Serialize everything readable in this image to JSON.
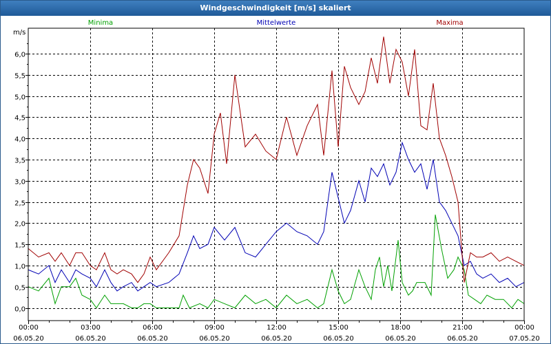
{
  "window": {
    "title": "Windgeschwindigkeit [m/s] skaliert"
  },
  "colors": {
    "min": "#00a000",
    "mean": "#0000b4",
    "max": "#a00000",
    "grid": "#000000",
    "titlebar": "#2a6aaa"
  },
  "chart_data": {
    "type": "line",
    "title": "Windgeschwindigkeit [m/s] skaliert",
    "ylabel": "m/s",
    "xlabel": "",
    "ylim": [
      -0.3,
      6.6
    ],
    "xlim": [
      0,
      24
    ],
    "grid": true,
    "legend_placement": "top",
    "y_ticks": [
      {
        "value": 0.0,
        "label": "0,0"
      },
      {
        "value": 0.5,
        "label": "0,5"
      },
      {
        "value": 1.0,
        "label": "1,0"
      },
      {
        "value": 1.5,
        "label": "1,5"
      },
      {
        "value": 2.0,
        "label": "2,0"
      },
      {
        "value": 2.5,
        "label": "2,5"
      },
      {
        "value": 3.0,
        "label": "3,0"
      },
      {
        "value": 3.5,
        "label": "3,5"
      },
      {
        "value": 4.0,
        "label": "4,0"
      },
      {
        "value": 4.5,
        "label": "4,5"
      },
      {
        "value": 5.0,
        "label": "5,0"
      },
      {
        "value": 5.5,
        "label": "5,5"
      },
      {
        "value": 6.0,
        "label": "6,0"
      }
    ],
    "x_ticks": [
      {
        "hour": 0,
        "time": "00:00",
        "date": "06.05.20"
      },
      {
        "hour": 3,
        "time": "03:00",
        "date": "06.05.20"
      },
      {
        "hour": 6,
        "time": "06:00",
        "date": "06.05.20"
      },
      {
        "hour": 9,
        "time": "09:00",
        "date": "06.05.20"
      },
      {
        "hour": 12,
        "time": "12:00",
        "date": "06.05.20"
      },
      {
        "hour": 15,
        "time": "15:00",
        "date": "06.05.20"
      },
      {
        "hour": 18,
        "time": "18:00",
        "date": "06.05.20"
      },
      {
        "hour": 21,
        "time": "21:00",
        "date": "06.05.20"
      },
      {
        "hour": 24,
        "time": "00:00",
        "date": "07.05.20"
      }
    ],
    "series": [
      {
        "key": "min",
        "name": "Minima",
        "color": "#00a000",
        "points": [
          [
            0.0,
            0.5
          ],
          [
            0.5,
            0.4
          ],
          [
            1.0,
            0.7
          ],
          [
            1.3,
            0.1
          ],
          [
            1.6,
            0.5
          ],
          [
            2.0,
            0.5
          ],
          [
            2.3,
            0.7
          ],
          [
            2.6,
            0.3
          ],
          [
            3.0,
            0.2
          ],
          [
            3.3,
            0.0
          ],
          [
            3.7,
            0.3
          ],
          [
            4.0,
            0.1
          ],
          [
            4.3,
            0.1
          ],
          [
            4.6,
            0.1
          ],
          [
            5.0,
            0.0
          ],
          [
            5.3,
            0.0
          ],
          [
            5.6,
            0.1
          ],
          [
            5.9,
            0.1
          ],
          [
            6.2,
            0.0
          ],
          [
            6.8,
            0.0
          ],
          [
            7.3,
            0.0
          ],
          [
            7.5,
            0.3
          ],
          [
            7.8,
            0.0
          ],
          [
            8.3,
            0.1
          ],
          [
            8.7,
            0.0
          ],
          [
            9.0,
            0.2
          ],
          [
            9.5,
            0.1
          ],
          [
            10.0,
            0.0
          ],
          [
            10.5,
            0.3
          ],
          [
            11.0,
            0.1
          ],
          [
            11.5,
            0.2
          ],
          [
            12.0,
            0.0
          ],
          [
            12.5,
            0.3
          ],
          [
            13.0,
            0.1
          ],
          [
            13.5,
            0.2
          ],
          [
            14.0,
            0.0
          ],
          [
            14.3,
            0.1
          ],
          [
            14.7,
            0.9
          ],
          [
            15.0,
            0.4
          ],
          [
            15.3,
            0.1
          ],
          [
            15.6,
            0.2
          ],
          [
            16.0,
            0.9
          ],
          [
            16.3,
            0.5
          ],
          [
            16.6,
            0.2
          ],
          [
            16.8,
            0.9
          ],
          [
            17.0,
            1.2
          ],
          [
            17.2,
            0.5
          ],
          [
            17.4,
            1.0
          ],
          [
            17.6,
            0.4
          ],
          [
            17.9,
            1.6
          ],
          [
            18.1,
            0.6
          ],
          [
            18.4,
            0.3
          ],
          [
            18.6,
            0.4
          ],
          [
            18.8,
            0.6
          ],
          [
            19.2,
            0.6
          ],
          [
            19.5,
            0.3
          ],
          [
            19.7,
            2.2
          ],
          [
            20.0,
            1.4
          ],
          [
            20.3,
            0.7
          ],
          [
            20.6,
            0.9
          ],
          [
            20.8,
            1.2
          ],
          [
            21.1,
            0.9
          ],
          [
            21.3,
            0.3
          ],
          [
            21.6,
            0.2
          ],
          [
            21.9,
            0.1
          ],
          [
            22.2,
            0.3
          ],
          [
            22.6,
            0.2
          ],
          [
            23.0,
            0.2
          ],
          [
            23.4,
            0.0
          ],
          [
            23.7,
            0.2
          ],
          [
            24.0,
            0.1
          ]
        ]
      },
      {
        "key": "mean",
        "name": "Mittelwerte",
        "color": "#0000b4",
        "points": [
          [
            0.0,
            0.9
          ],
          [
            0.5,
            0.8
          ],
          [
            1.0,
            1.0
          ],
          [
            1.3,
            0.6
          ],
          [
            1.6,
            0.9
          ],
          [
            2.0,
            0.6
          ],
          [
            2.3,
            0.9
          ],
          [
            2.6,
            0.8
          ],
          [
            3.0,
            0.7
          ],
          [
            3.3,
            0.5
          ],
          [
            3.7,
            0.9
          ],
          [
            4.0,
            0.6
          ],
          [
            4.3,
            0.4
          ],
          [
            4.6,
            0.5
          ],
          [
            5.0,
            0.6
          ],
          [
            5.3,
            0.4
          ],
          [
            5.6,
            0.5
          ],
          [
            5.9,
            0.6
          ],
          [
            6.2,
            0.5
          ],
          [
            6.8,
            0.6
          ],
          [
            7.3,
            0.8
          ],
          [
            7.7,
            1.3
          ],
          [
            8.0,
            1.7
          ],
          [
            8.3,
            1.4
          ],
          [
            8.7,
            1.5
          ],
          [
            9.0,
            1.9
          ],
          [
            9.5,
            1.6
          ],
          [
            10.0,
            1.9
          ],
          [
            10.5,
            1.3
          ],
          [
            11.0,
            1.2
          ],
          [
            11.5,
            1.5
          ],
          [
            12.0,
            1.8
          ],
          [
            12.5,
            2.0
          ],
          [
            13.0,
            1.8
          ],
          [
            13.5,
            1.7
          ],
          [
            14.0,
            1.5
          ],
          [
            14.3,
            1.8
          ],
          [
            14.7,
            3.2
          ],
          [
            15.0,
            2.6
          ],
          [
            15.3,
            2.0
          ],
          [
            15.6,
            2.3
          ],
          [
            16.0,
            3.0
          ],
          [
            16.3,
            2.5
          ],
          [
            16.6,
            3.3
          ],
          [
            16.9,
            3.1
          ],
          [
            17.2,
            3.4
          ],
          [
            17.5,
            2.9
          ],
          [
            17.8,
            3.2
          ],
          [
            18.1,
            3.9
          ],
          [
            18.4,
            3.5
          ],
          [
            18.7,
            3.2
          ],
          [
            19.0,
            3.4
          ],
          [
            19.3,
            2.8
          ],
          [
            19.6,
            3.5
          ],
          [
            19.9,
            2.5
          ],
          [
            20.2,
            2.3
          ],
          [
            20.5,
            2.0
          ],
          [
            20.8,
            1.7
          ],
          [
            21.1,
            1.0
          ],
          [
            21.4,
            1.1
          ],
          [
            21.7,
            0.8
          ],
          [
            22.0,
            0.7
          ],
          [
            22.4,
            0.8
          ],
          [
            22.8,
            0.6
          ],
          [
            23.2,
            0.7
          ],
          [
            23.6,
            0.5
          ],
          [
            24.0,
            0.6
          ]
        ]
      },
      {
        "key": "max",
        "name": "Maxima",
        "color": "#a00000",
        "points": [
          [
            0.0,
            1.4
          ],
          [
            0.5,
            1.2
          ],
          [
            1.0,
            1.3
          ],
          [
            1.3,
            1.1
          ],
          [
            1.6,
            1.3
          ],
          [
            2.0,
            1.0
          ],
          [
            2.3,
            1.3
          ],
          [
            2.6,
            1.3
          ],
          [
            3.0,
            1.0
          ],
          [
            3.3,
            0.9
          ],
          [
            3.7,
            1.3
          ],
          [
            4.0,
            0.9
          ],
          [
            4.3,
            0.8
          ],
          [
            4.6,
            0.9
          ],
          [
            5.0,
            0.8
          ],
          [
            5.3,
            0.6
          ],
          [
            5.6,
            0.8
          ],
          [
            5.9,
            1.2
          ],
          [
            6.2,
            0.9
          ],
          [
            6.8,
            1.3
          ],
          [
            7.3,
            1.7
          ],
          [
            7.7,
            2.9
          ],
          [
            8.0,
            3.5
          ],
          [
            8.3,
            3.3
          ],
          [
            8.7,
            2.7
          ],
          [
            9.0,
            4.1
          ],
          [
            9.3,
            4.6
          ],
          [
            9.6,
            3.4
          ],
          [
            10.0,
            5.5
          ],
          [
            10.5,
            3.8
          ],
          [
            11.0,
            4.1
          ],
          [
            11.5,
            3.7
          ],
          [
            12.0,
            3.5
          ],
          [
            12.5,
            4.5
          ],
          [
            13.0,
            3.6
          ],
          [
            13.5,
            4.3
          ],
          [
            14.0,
            4.8
          ],
          [
            14.3,
            3.6
          ],
          [
            14.7,
            5.6
          ],
          [
            15.0,
            3.8
          ],
          [
            15.3,
            5.7
          ],
          [
            15.6,
            5.2
          ],
          [
            16.0,
            4.8
          ],
          [
            16.3,
            5.1
          ],
          [
            16.6,
            5.9
          ],
          [
            16.9,
            5.3
          ],
          [
            17.2,
            6.4
          ],
          [
            17.5,
            5.3
          ],
          [
            17.8,
            6.1
          ],
          [
            18.1,
            5.8
          ],
          [
            18.4,
            5.0
          ],
          [
            18.7,
            6.1
          ],
          [
            19.0,
            4.3
          ],
          [
            19.3,
            4.2
          ],
          [
            19.6,
            5.3
          ],
          [
            19.9,
            4.0
          ],
          [
            20.2,
            3.6
          ],
          [
            20.5,
            3.1
          ],
          [
            20.8,
            2.5
          ],
          [
            21.1,
            0.6
          ],
          [
            21.4,
            1.3
          ],
          [
            21.7,
            1.2
          ],
          [
            22.0,
            1.2
          ],
          [
            22.4,
            1.3
          ],
          [
            22.8,
            1.1
          ],
          [
            23.2,
            1.2
          ],
          [
            23.6,
            1.1
          ],
          [
            24.0,
            1.0
          ]
        ]
      }
    ]
  }
}
